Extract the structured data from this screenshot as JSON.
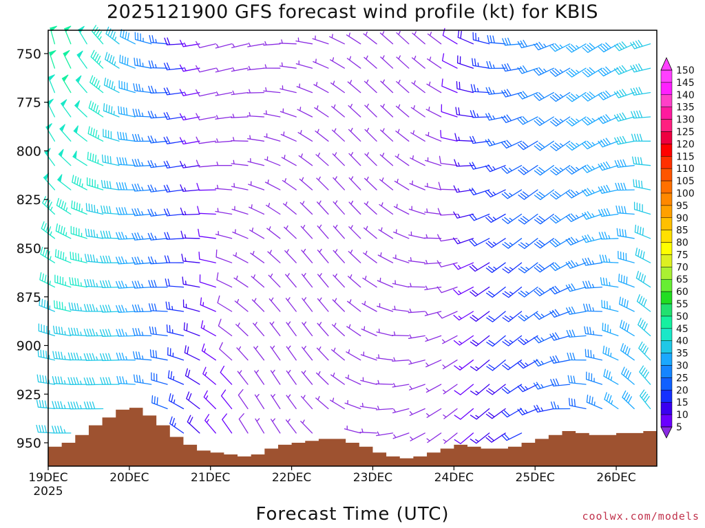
{
  "title": "2025121900 GFS forecast wind profile (kt) for KBIS",
  "xlabel": "Forecast Time (UTC)",
  "credit": "coolwx.com/models",
  "chart_data": {
    "type": "wind-barb time-height profile",
    "x_ticks": [
      "19DEC",
      "20DEC",
      "21DEC",
      "22DEC",
      "23DEC",
      "24DEC",
      "25DEC",
      "26DEC"
    ],
    "x_year_label": "2025",
    "x_range_days": [
      0,
      7.5
    ],
    "y_ticks": [
      750,
      775,
      800,
      825,
      850,
      875,
      900,
      925,
      950
    ],
    "y_range_hpa": [
      738,
      962
    ],
    "colorbar_levels": [
      5,
      10,
      15,
      20,
      25,
      30,
      35,
      40,
      45,
      50,
      55,
      60,
      65,
      70,
      75,
      80,
      85,
      90,
      95,
      100,
      105,
      110,
      115,
      120,
      125,
      130,
      135,
      140,
      145,
      150
    ],
    "colorbar_colors": [
      "#8a2be2",
      "#6a00ff",
      "#3a00f0",
      "#1530ff",
      "#1060ff",
      "#1585ff",
      "#1ba8ff",
      "#20c8e6",
      "#1ae8c8",
      "#15f0a0",
      "#22e070",
      "#22dd22",
      "#66ee33",
      "#aaf033",
      "#ddf022",
      "#ffff00",
      "#ffe000",
      "#ffc000",
      "#ffa000",
      "#ff8800",
      "#ff7000",
      "#ff5500",
      "#ff3000",
      "#ff0000",
      "#ee0040",
      "#ff2080",
      "#ff1a9e",
      "#ff40c8",
      "#ff20ff",
      "#ff40ff"
    ],
    "terrain_color": "#9e5230",
    "surface_pressure_hpa": [
      952,
      950,
      946,
      941,
      937,
      933,
      932,
      936,
      941,
      947,
      951,
      954,
      955,
      956,
      957,
      956,
      953,
      951,
      950,
      949,
      948,
      948,
      950,
      952,
      955,
      957,
      958,
      957,
      955,
      953,
      951,
      952,
      953,
      953,
      952,
      950,
      948,
      946,
      944,
      945,
      946,
      946,
      945,
      945,
      944
    ],
    "grid": false
  }
}
